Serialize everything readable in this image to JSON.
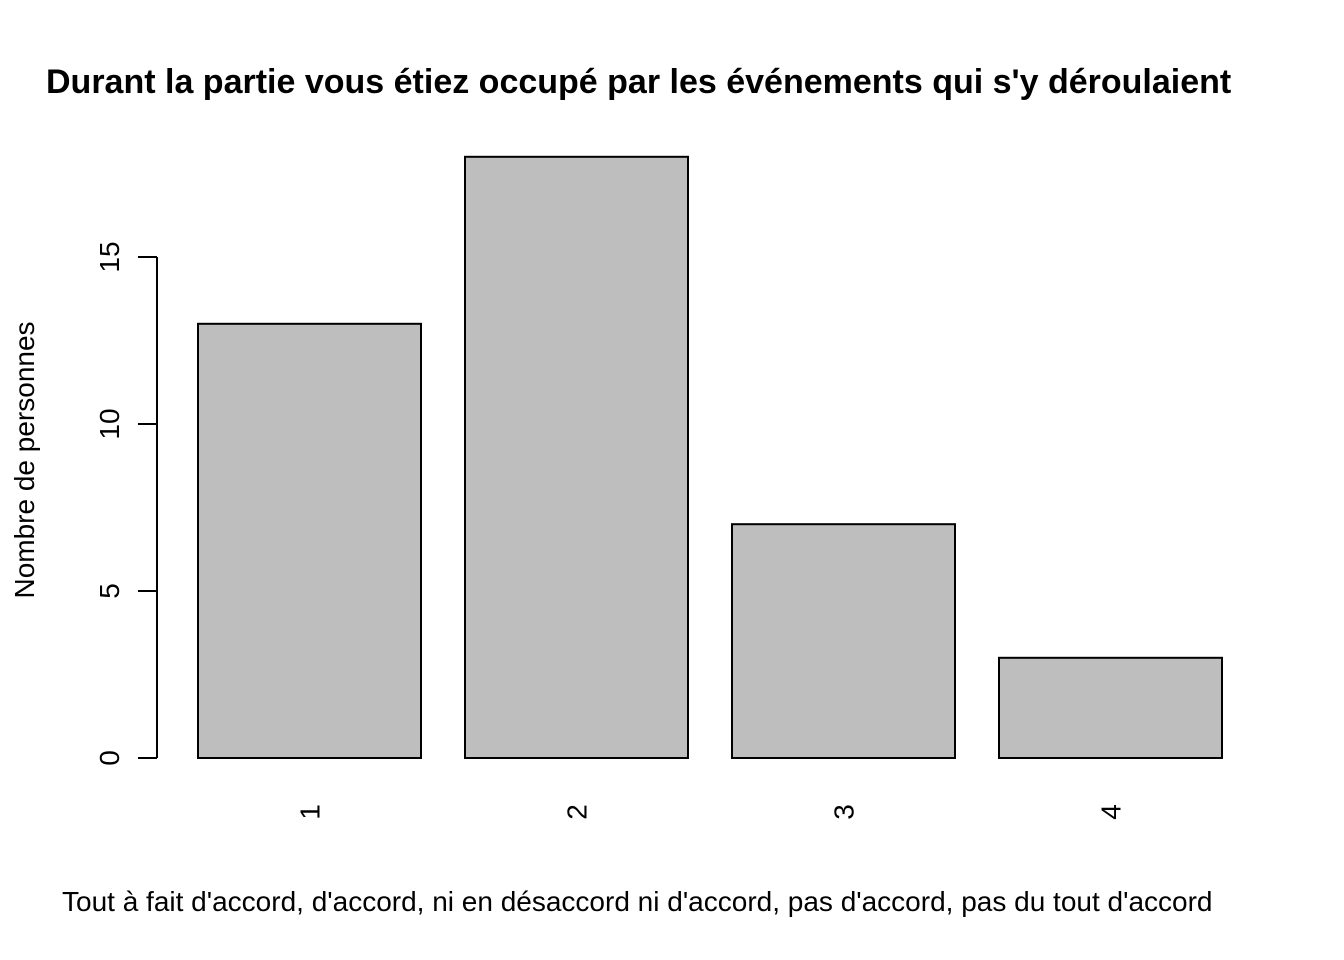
{
  "chart_data": {
    "type": "bar",
    "title": "Durant la partie vous étiez occupé par les événements qui s'y déroulaient",
    "xlabel": "Tout à fait d'accord, d'accord, ni en désaccord ni d'accord, pas d'accord, pas du tout d'accord",
    "ylabel": "Nombre de personnes",
    "categories": [
      "1",
      "2",
      "3",
      "4"
    ],
    "values": [
      13,
      18,
      7,
      3
    ],
    "ylim": [
      0,
      18
    ],
    "yticks": [
      "0",
      "5",
      "10",
      "15"
    ],
    "grid": false,
    "bar_color": "#bebebe",
    "bar_border": "#000000"
  }
}
